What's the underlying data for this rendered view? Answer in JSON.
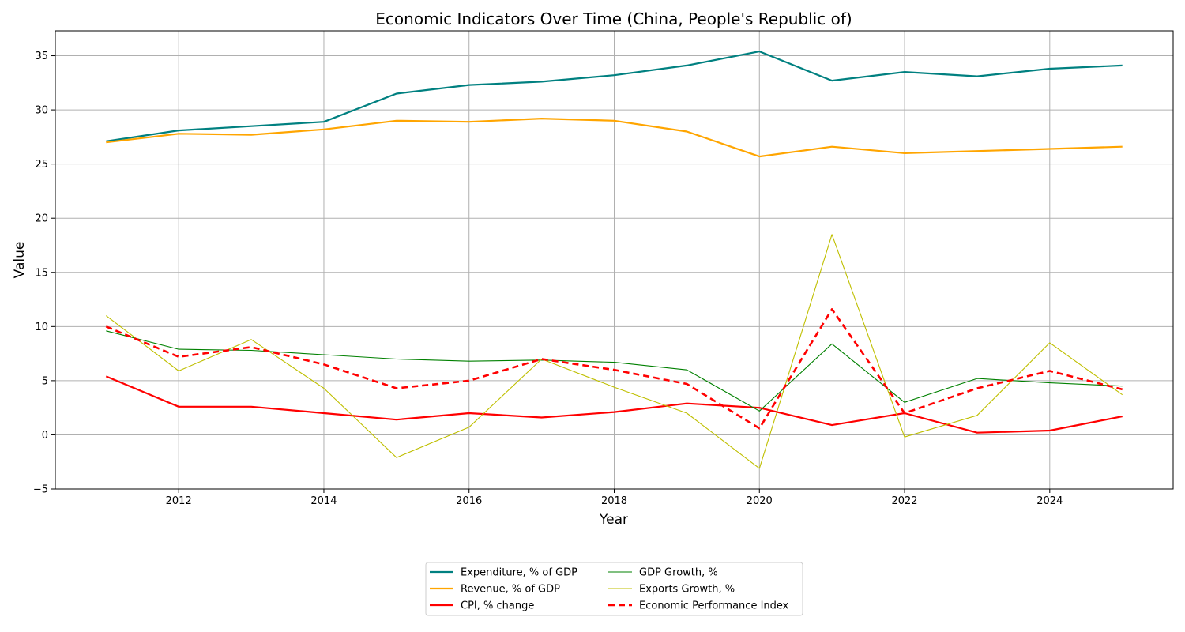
{
  "chart_data": {
    "type": "line",
    "title": "Economic Indicators Over Time (China, People's Republic of)",
    "xlabel": "Year",
    "ylabel": "Value",
    "xlim": [
      2010.3,
      2025.7
    ],
    "ylim": [
      -5,
      37.3
    ],
    "xticks": [
      2012,
      2014,
      2016,
      2018,
      2020,
      2022,
      2024
    ],
    "yticks": [
      -5,
      0,
      5,
      10,
      15,
      20,
      25,
      30,
      35
    ],
    "grid": true,
    "legend_position": "bottom-center",
    "x": [
      2011,
      2012,
      2013,
      2014,
      2015,
      2016,
      2017,
      2018,
      2019,
      2020,
      2021,
      2022,
      2023,
      2024,
      2025
    ],
    "series": [
      {
        "name": "Expenditure, % of GDP",
        "color": "#008080",
        "width": 2.2,
        "dash": "",
        "values": [
          27.1,
          28.1,
          28.5,
          28.9,
          31.5,
          32.3,
          32.6,
          33.2,
          34.1,
          35.4,
          32.7,
          33.5,
          33.1,
          33.8,
          34.1
        ]
      },
      {
        "name": "Revenue, % of GDP",
        "color": "#ffa500",
        "width": 2.2,
        "dash": "",
        "values": [
          27.0,
          27.8,
          27.7,
          28.2,
          29.0,
          28.9,
          29.2,
          29.0,
          28.0,
          25.7,
          26.6,
          26.0,
          26.2,
          26.4,
          26.6
        ]
      },
      {
        "name": "CPI, % change",
        "color": "#ff0000",
        "width": 2.2,
        "dash": "",
        "values": [
          5.4,
          2.6,
          2.6,
          2.0,
          1.4,
          2.0,
          1.6,
          2.1,
          2.9,
          2.5,
          0.9,
          2.0,
          0.2,
          0.4,
          1.7
        ]
      },
      {
        "name": "GDP Growth, %",
        "color": "#008000",
        "width": 1.1,
        "dash": "",
        "values": [
          9.6,
          7.9,
          7.8,
          7.4,
          7.0,
          6.8,
          6.9,
          6.7,
          6.0,
          2.2,
          8.4,
          3.0,
          5.2,
          4.8,
          4.5
        ]
      },
      {
        "name": "Exports Growth, %",
        "color": "#bfbf00",
        "width": 1.1,
        "dash": "",
        "values": [
          11.0,
          5.9,
          8.8,
          4.3,
          -2.1,
          0.7,
          7.0,
          4.4,
          2.0,
          -3.1,
          18.5,
          -0.2,
          1.8,
          8.5,
          3.7
        ]
      },
      {
        "name": "Economic Performance Index",
        "color": "#ff0000",
        "width": 2.6,
        "dash": "8,5",
        "values": [
          10.0,
          7.2,
          8.1,
          6.5,
          4.3,
          5.0,
          7.0,
          6.0,
          4.7,
          0.6,
          11.6,
          2.0,
          4.3,
          5.9,
          4.2
        ]
      }
    ]
  }
}
